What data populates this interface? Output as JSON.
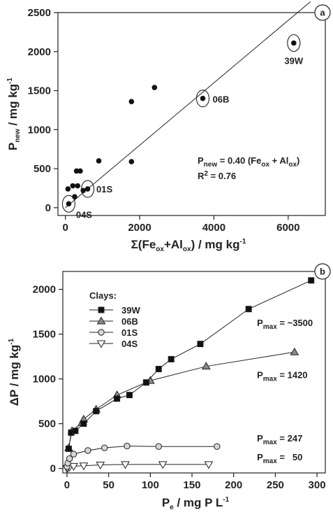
{
  "chart_data": [
    {
      "type": "scatter",
      "panel_label": "a",
      "xlabel": {
        "pre": "Σ(Fe",
        "s1": "ox",
        "mid": "+Al",
        "s2": "ox",
        "post": ") / mg kg",
        "sup": "-1"
      },
      "ylabel": {
        "main": "P",
        "sub": "new",
        "rest": " / mg kg",
        "sup": "-1"
      },
      "xlim": [
        -200,
        7000
      ],
      "ylim": [
        -100,
        2500
      ],
      "xticks": [
        0,
        2000,
        4000,
        6000
      ],
      "yticks": [
        0,
        500,
        1000,
        1500,
        2000,
        2500
      ],
      "points": [
        [
          70,
          240
        ],
        [
          90,
          50
        ],
        [
          200,
          280
        ],
        [
          250,
          140
        ],
        [
          300,
          470
        ],
        [
          330,
          280
        ],
        [
          400,
          470
        ],
        [
          480,
          220
        ],
        [
          600,
          240
        ],
        [
          900,
          600
        ],
        [
          1780,
          590
        ],
        [
          1780,
          1360
        ],
        [
          2400,
          1540
        ],
        [
          3700,
          1400
        ],
        [
          6150,
          2110
        ]
      ],
      "fit_line": {
        "slope": 0.4,
        "intercept": 0,
        "x_range": [
          0,
          6600
        ]
      },
      "labeled_points": [
        {
          "label": "39W",
          "x": 6150,
          "y": 2110
        },
        {
          "label": "06B",
          "x": 3700,
          "y": 1400
        },
        {
          "label": "01S",
          "x": 600,
          "y": 240
        },
        {
          "label": "04S",
          "x": 90,
          "y": 50
        }
      ],
      "equation": {
        "p": "P",
        "sub_new": "new",
        "text1": " = 0.40 (Fe",
        "sub1": "ox",
        "text2": " + Al",
        "sub2": "ox",
        "text3": ")"
      },
      "r2": {
        "text": "R",
        "sup": "2",
        "rest": " = 0.76"
      },
      "grid": false
    },
    {
      "type": "line",
      "panel_label": "b",
      "xlabel": {
        "main": "P",
        "sub": "e",
        "rest": " / mg P L",
        "sup": "-1"
      },
      "ylabel": {
        "text": "ΔP / mg kg",
        "sup": "-1"
      },
      "xlim": [
        -5,
        310
      ],
      "ylim": [
        -50,
        2200
      ],
      "xticks": [
        0,
        50,
        100,
        150,
        200,
        250,
        300
      ],
      "yticks": [
        0,
        500,
        1000,
        1500,
        2000
      ],
      "legend_title": "Clays:",
      "legend_position": "top-left",
      "series": [
        {
          "name": "39W",
          "marker": "square",
          "color": "#111111",
          "x": [
            2,
            5,
            10,
            20,
            35,
            60,
            75,
            95,
            110,
            125,
            160,
            218,
            293
          ],
          "y": [
            220,
            400,
            420,
            500,
            640,
            780,
            820,
            960,
            1110,
            1220,
            1390,
            1780,
            2100
          ]
        },
        {
          "name": "06B",
          "marker": "triangle-up",
          "color": "#8a8a8a",
          "x": [
            2,
            6,
            18,
            20,
            35,
            60,
            100,
            167,
            273
          ],
          "y": [
            230,
            420,
            510,
            550,
            660,
            820,
            980,
            1140,
            1300
          ]
        },
        {
          "name": "01S",
          "marker": "circle",
          "color": "#d6d6d6",
          "x": [
            0,
            1,
            3,
            8,
            25,
            45,
            72,
            110,
            180
          ],
          "y": [
            20,
            60,
            110,
            160,
            200,
            230,
            250,
            245,
            245
          ]
        },
        {
          "name": "04S",
          "marker": "triangle-down",
          "color": "#ffffff",
          "x": [
            0,
            1,
            3,
            8,
            20,
            40,
            70,
            115,
            170
          ],
          "y": [
            0,
            5,
            15,
            25,
            30,
            40,
            45,
            45,
            45
          ]
        }
      ],
      "annotations": [
        {
          "p": "P",
          "sub": "max",
          "value": " = ~3500",
          "data_x": 228,
          "data_y": 1590
        },
        {
          "p": "P",
          "sub": "max",
          "value": " = 1420",
          "data_x": 228,
          "data_y": 1010
        },
        {
          "p": "P",
          "sub": "max",
          "value": " = 247",
          "data_x": 228,
          "data_y": 300
        },
        {
          "p": "P",
          "sub": "max",
          "value": " =   50",
          "data_x": 228,
          "data_y": 90
        }
      ],
      "grid": false
    }
  ]
}
